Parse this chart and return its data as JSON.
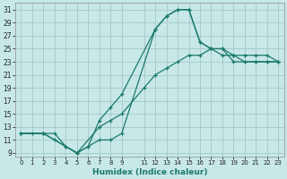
{
  "xlabel": "Humidex (Indice chaleur)",
  "ylabel": "",
  "xlim": [
    -0.5,
    23.5
  ],
  "ylim": [
    8.5,
    32
  ],
  "xticks": [
    0,
    1,
    2,
    3,
    4,
    5,
    6,
    7,
    8,
    9,
    11,
    12,
    13,
    14,
    15,
    16,
    17,
    18,
    19,
    20,
    21,
    22,
    23
  ],
  "yticks": [
    9,
    11,
    13,
    15,
    17,
    19,
    21,
    23,
    25,
    27,
    29,
    31
  ],
  "bg_color": "#c8e8e8",
  "grid_color": "#a8cccc",
  "line_color": "#1a7a6a",
  "lines": [
    {
      "x": [
        0,
        1,
        2,
        3,
        4,
        5,
        6,
        7,
        8,
        9,
        12,
        13,
        14,
        15,
        16,
        17,
        18,
        19,
        20,
        21,
        22,
        23
      ],
      "y": [
        12,
        12,
        12,
        11,
        10,
        9,
        10,
        11,
        11,
        12,
        28,
        30,
        31,
        31,
        26,
        25,
        25,
        24,
        23,
        23,
        23,
        23
      ]
    },
    {
      "x": [
        0,
        2,
        3,
        4,
        5,
        6,
        7,
        8,
        9,
        12,
        13,
        14,
        15,
        16,
        17,
        18,
        19,
        20,
        21,
        22,
        23
      ],
      "y": [
        12,
        12,
        12,
        10,
        9,
        10,
        14,
        16,
        18,
        28,
        30,
        31,
        31,
        26,
        25,
        24,
        24,
        24,
        24,
        24,
        23
      ]
    },
    {
      "x": [
        0,
        2,
        5,
        7,
        8,
        9,
        11,
        12,
        13,
        14,
        15,
        16,
        17,
        18,
        19,
        20,
        21,
        22,
        23
      ],
      "y": [
        12,
        12,
        9,
        13,
        14,
        15,
        19,
        21,
        22,
        23,
        24,
        24,
        25,
        25,
        23,
        23,
        23,
        23,
        23
      ]
    }
  ]
}
